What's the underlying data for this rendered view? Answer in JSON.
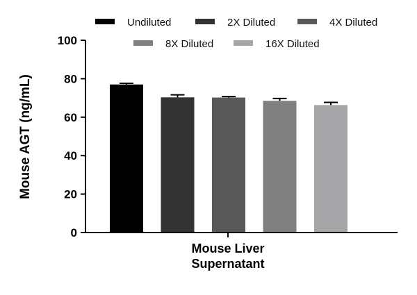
{
  "chart_data": {
    "type": "bar",
    "title": "",
    "ylabel": "Mouse AGT (ng/mL)",
    "xlabel": "",
    "categories": [
      "Mouse Liver Supernatant"
    ],
    "category_lines": [
      "Mouse Liver",
      "Supernatant"
    ],
    "ylim": [
      0,
      100
    ],
    "yticks": [
      "0",
      "20",
      "40",
      "60",
      "80",
      "100"
    ],
    "grid": false,
    "legend_position": "top",
    "series": [
      {
        "name": "Undiluted",
        "values": [
          77.0
        ],
        "error": [
          0.6
        ],
        "color": "#000000"
      },
      {
        "name": "2X Diluted",
        "values": [
          70.3
        ],
        "error": [
          1.3
        ],
        "color": "#333333"
      },
      {
        "name": "4X Diluted",
        "values": [
          70.2
        ],
        "error": [
          0.5
        ],
        "color": "#595959"
      },
      {
        "name": "8X Diluted",
        "values": [
          68.5
        ],
        "error": [
          1.2
        ],
        "color": "#808080"
      },
      {
        "name": "16X Diluted",
        "values": [
          66.3
        ],
        "error": [
          1.4
        ],
        "color": "#a6a6a8"
      }
    ]
  }
}
